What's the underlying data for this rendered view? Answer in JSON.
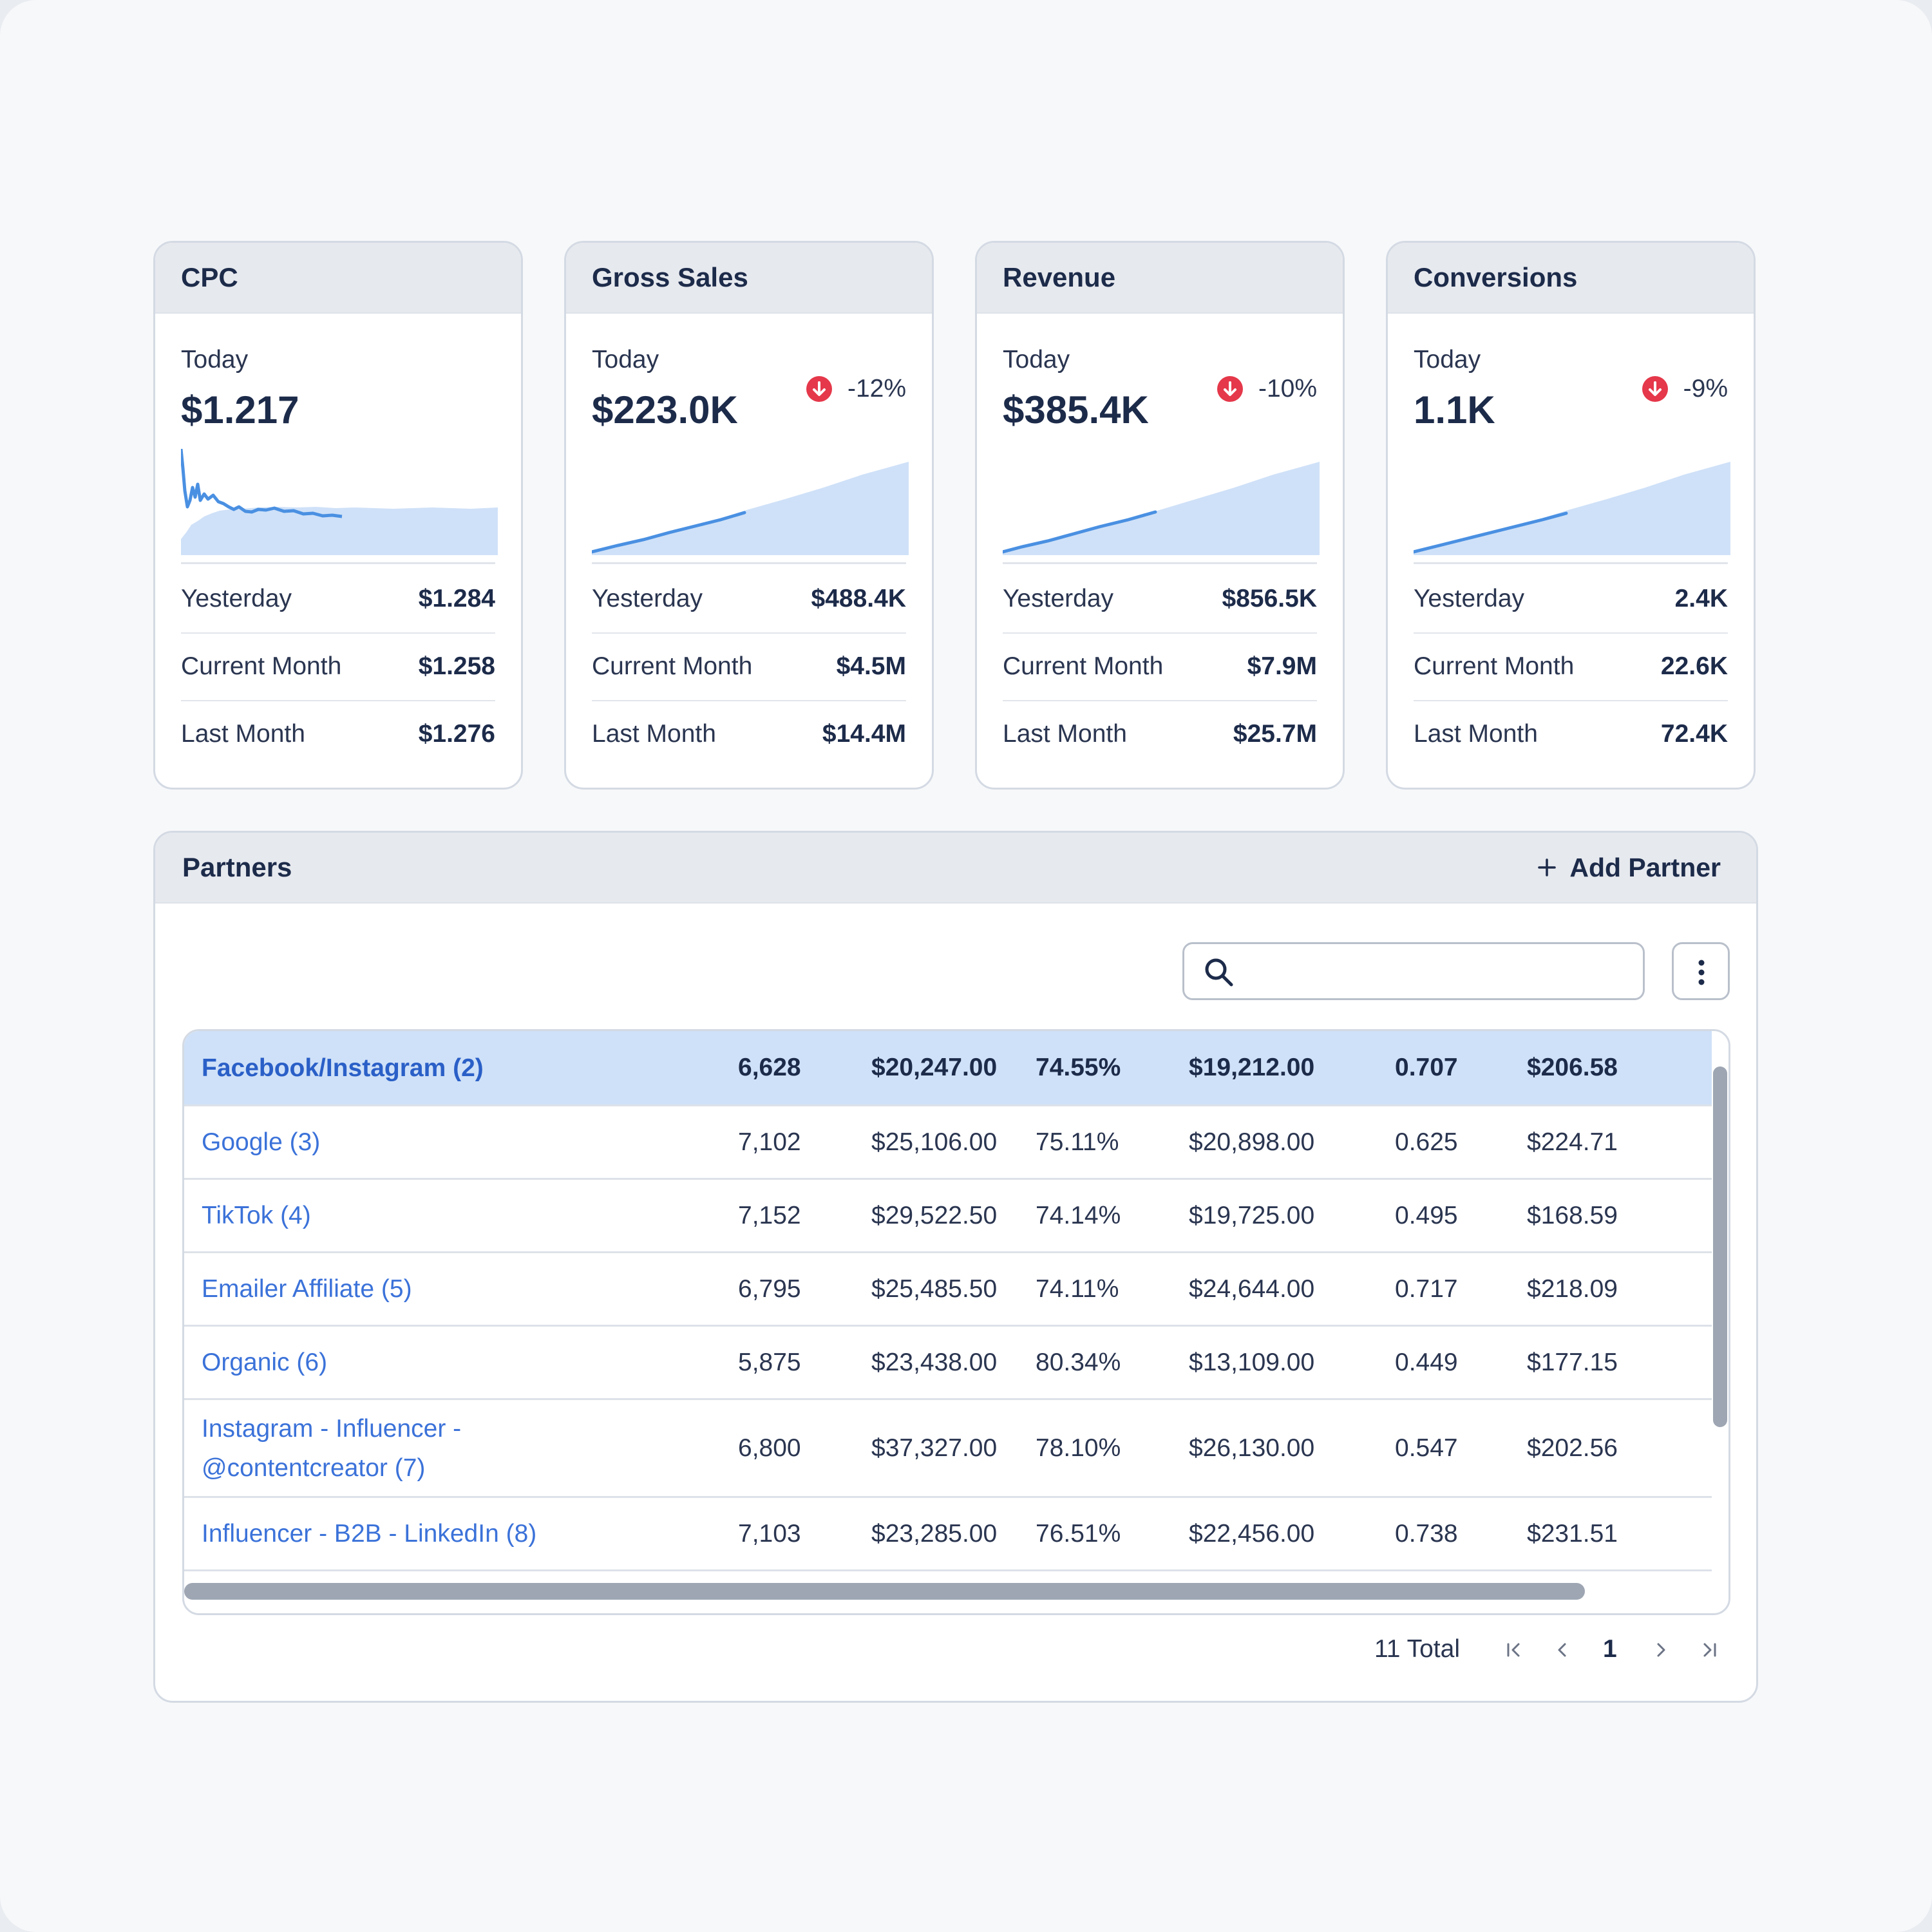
{
  "colors": {
    "accent": "#3b72d9",
    "sparkFill": "#cfe1f8",
    "sparkLine": "#4a90e2",
    "negative": "#e5384a"
  },
  "cards": [
    {
      "title": "CPC",
      "today_label": "Today",
      "today": "$1.217",
      "delta": "",
      "rows": [
        {
          "label": "Yesterday",
          "value": "$1.284"
        },
        {
          "label": "Current Month",
          "value": "$1.258"
        },
        {
          "label": "Last Month",
          "value": "$1.276"
        }
      ]
    },
    {
      "title": "Gross Sales",
      "today_label": "Today",
      "today": "$223.0K",
      "delta": "-12%",
      "rows": [
        {
          "label": "Yesterday",
          "value": "$488.4K"
        },
        {
          "label": "Current Month",
          "value": "$4.5M"
        },
        {
          "label": "Last Month",
          "value": "$14.4M"
        }
      ]
    },
    {
      "title": "Revenue",
      "today_label": "Today",
      "today": "$385.4K",
      "delta": "-10%",
      "rows": [
        {
          "label": "Yesterday",
          "value": "$856.5K"
        },
        {
          "label": "Current Month",
          "value": "$7.9M"
        },
        {
          "label": "Last Month",
          "value": "$25.7M"
        }
      ]
    },
    {
      "title": "Conversions",
      "today_label": "Today",
      "today": "1.1K",
      "delta": "-9%",
      "rows": [
        {
          "label": "Yesterday",
          "value": "2.4K"
        },
        {
          "label": "Current Month",
          "value": "22.6K"
        },
        {
          "label": "Last Month",
          "value": "72.4K"
        }
      ]
    }
  ],
  "partners": {
    "title": "Partners",
    "add_label": "Add Partner",
    "search_placeholder": "",
    "rows": [
      {
        "name": "Facebook/Instagram (2)",
        "c1": "6,628",
        "c2": "$20,247.00",
        "c3": "74.55%",
        "c4": "$19,212.00",
        "c5": "0.707",
        "c6": "$206.58"
      },
      {
        "name": "Google (3)",
        "c1": "7,102",
        "c2": "$25,106.00",
        "c3": "75.11%",
        "c4": "$20,898.00",
        "c5": "0.625",
        "c6": "$224.71"
      },
      {
        "name": "TikTok (4)",
        "c1": "7,152",
        "c2": "$29,522.50",
        "c3": "74.14%",
        "c4": "$19,725.00",
        "c5": "0.495",
        "c6": "$168.59"
      },
      {
        "name": "Emailer Affiliate (5)",
        "c1": "6,795",
        "c2": "$25,485.50",
        "c3": "74.11%",
        "c4": "$24,644.00",
        "c5": "0.717",
        "c6": "$218.09"
      },
      {
        "name": "Organic (6)",
        "c1": "5,875",
        "c2": "$23,438.00",
        "c3": "80.34%",
        "c4": "$13,109.00",
        "c5": "0.449",
        "c6": "$177.15"
      },
      {
        "name": "Instagram - Influencer - @contentcreator (7)",
        "c1": "6,800",
        "c2": "$37,327.00",
        "c3": "78.10%",
        "c4": "$26,130.00",
        "c5": "0.547",
        "c6": "$202.56"
      },
      {
        "name": "Influencer - B2B - LinkedIn (8)",
        "c1": "7,103",
        "c2": "$23,285.00",
        "c3": "76.51%",
        "c4": "$22,456.00",
        "c5": "0.738",
        "c6": "$231.51"
      }
    ],
    "total": "11 Total",
    "page": "1"
  }
}
